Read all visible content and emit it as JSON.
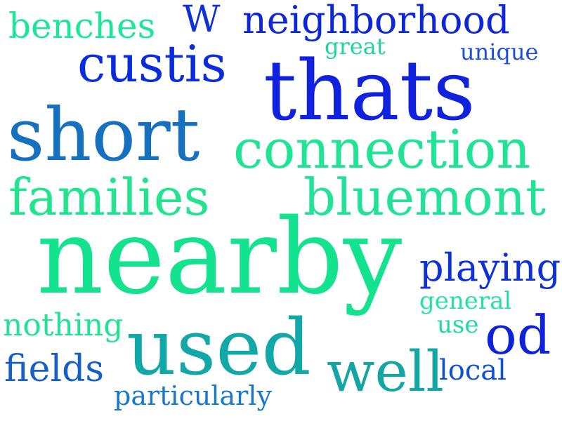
{
  "words": [
    {
      "text": "benches",
      "color": "#1de59a"
    },
    {
      "text": "W",
      "color": "#0f2fdc"
    },
    {
      "text": "neighborhood",
      "color": "#0e26da"
    },
    {
      "text": "great",
      "color": "#1fd5a0"
    },
    {
      "text": "unique",
      "color": "#1b4fd8"
    },
    {
      "text": "custis",
      "color": "#0a2cde"
    },
    {
      "text": "thats",
      "color": "#1022e0"
    },
    {
      "text": "short",
      "color": "#1570c0"
    },
    {
      "text": "connection",
      "color": "#1fe395"
    },
    {
      "text": "families",
      "color": "#22e48f"
    },
    {
      "text": "bluemont",
      "color": "#22e29a"
    },
    {
      "text": "nearby",
      "color": "#13e38e"
    },
    {
      "text": "playing",
      "color": "#0e31d8"
    },
    {
      "text": "general",
      "color": "#24e3a0"
    },
    {
      "text": "nothing",
      "color": "#26e095"
    },
    {
      "text": "use",
      "color": "#22d7a8"
    },
    {
      "text": "od",
      "color": "#0e22da"
    },
    {
      "text": "used",
      "color": "#13a8a8"
    },
    {
      "text": "well",
      "color": "#14a5a5"
    },
    {
      "text": "fields",
      "color": "#1460c6"
    },
    {
      "text": "local",
      "color": "#1052cf"
    },
    {
      "text": "particularly",
      "color": "#1a78c8"
    }
  ]
}
